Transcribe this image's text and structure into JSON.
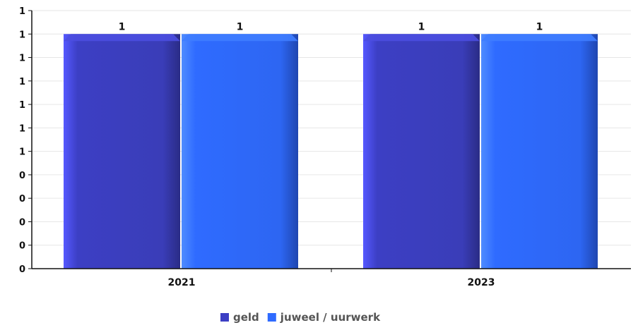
{
  "chart_data": {
    "type": "bar",
    "categories": [
      "2021",
      "2023"
    ],
    "series": [
      {
        "name": "geld",
        "values": [
          1,
          1
        ],
        "color": "#3c3fc4"
      },
      {
        "name": "juweel / uurwerk",
        "values": [
          1,
          1
        ],
        "color": "#2f6bff"
      }
    ],
    "ylim": [
      0,
      1.1
    ],
    "yticks": [
      0,
      0.1,
      0.2,
      0.3,
      0.4,
      0.5,
      0.6,
      0.7,
      0.8,
      0.9,
      1.0,
      1.1
    ],
    "ytick_labels": [
      "0",
      "0",
      "0",
      "0",
      "0",
      "1",
      "1",
      "1",
      "1",
      "1",
      "1",
      "1"
    ],
    "data_labels": [
      [
        "1",
        "1"
      ],
      [
        "1",
        "1"
      ]
    ],
    "grid": true,
    "legend_position": "bottom-center",
    "title": "",
    "xlabel": "",
    "ylabel": ""
  }
}
